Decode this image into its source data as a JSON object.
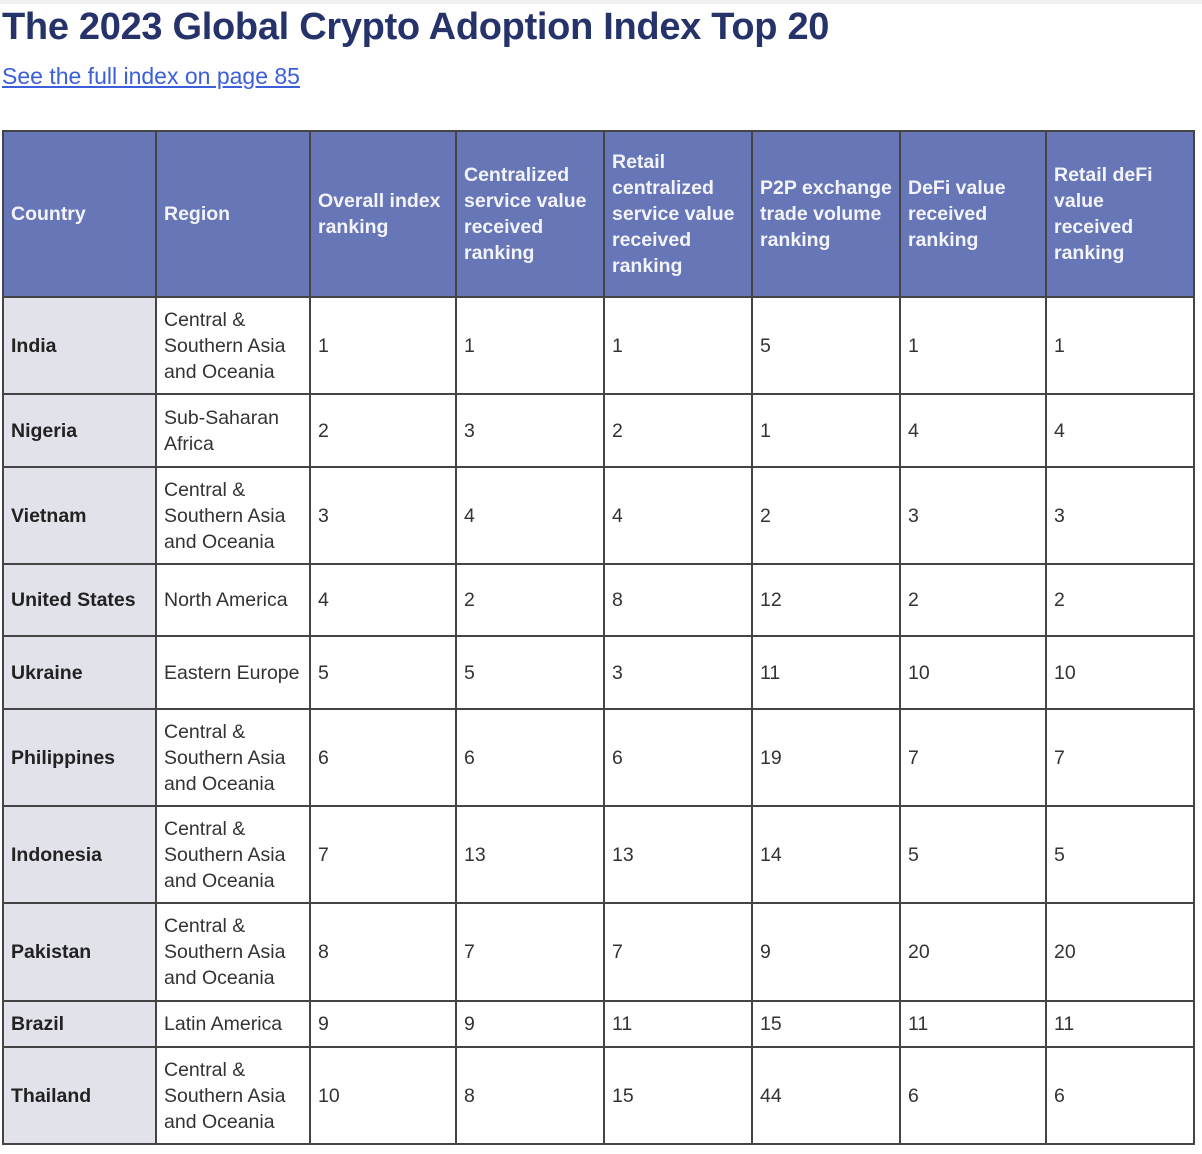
{
  "title": "The 2023 Global Crypto Adoption Index Top 20",
  "link": "See the full index on page 85",
  "colors": {
    "header_bg": "#6676b6",
    "country_bg": "#e2e3ea",
    "title": "#26336a",
    "link": "#3b5fd8"
  },
  "headers": [
    "Country",
    "Region",
    "Overall index ranking",
    "Centralized service value received ranking",
    "Retail centralized service value received ranking",
    "P2P exchange trade volume ranking",
    "DeFi value received ranking",
    "Retail deFi value received ranking"
  ],
  "rows": [
    [
      "India",
      "Central & Southern Asia and Oceania",
      "1",
      "1",
      "1",
      "5",
      "1",
      "1"
    ],
    [
      "Nigeria",
      "Sub-Saharan Africa",
      "2",
      "3",
      "2",
      "1",
      "4",
      "4"
    ],
    [
      "Vietnam",
      "Central & Southern Asia and Oceania",
      "3",
      "4",
      "4",
      "2",
      "3",
      "3"
    ],
    [
      "United States",
      "North America",
      "4",
      "2",
      "8",
      "12",
      "2",
      "2"
    ],
    [
      "Ukraine",
      "Eastern Europe",
      "5",
      "5",
      "3",
      "11",
      "10",
      "10"
    ],
    [
      "Philippines",
      "Central & Southern Asia and Oceania",
      "6",
      "6",
      "6",
      "19",
      "7",
      "7"
    ],
    [
      "Indonesia",
      "Central & Southern Asia and Oceania",
      "7",
      "13",
      "13",
      "14",
      "5",
      "5"
    ],
    [
      "Pakistan",
      "Central & Southern Asia and Oceania",
      "8",
      "7",
      "7",
      "9",
      "20",
      "20"
    ],
    [
      "Brazil",
      "Latin America",
      "9",
      "9",
      "11",
      "15",
      "11",
      "11"
    ],
    [
      "Thailand",
      "Central & Southern Asia and Oceania",
      "10",
      "8",
      "15",
      "44",
      "6",
      "6"
    ]
  ]
}
